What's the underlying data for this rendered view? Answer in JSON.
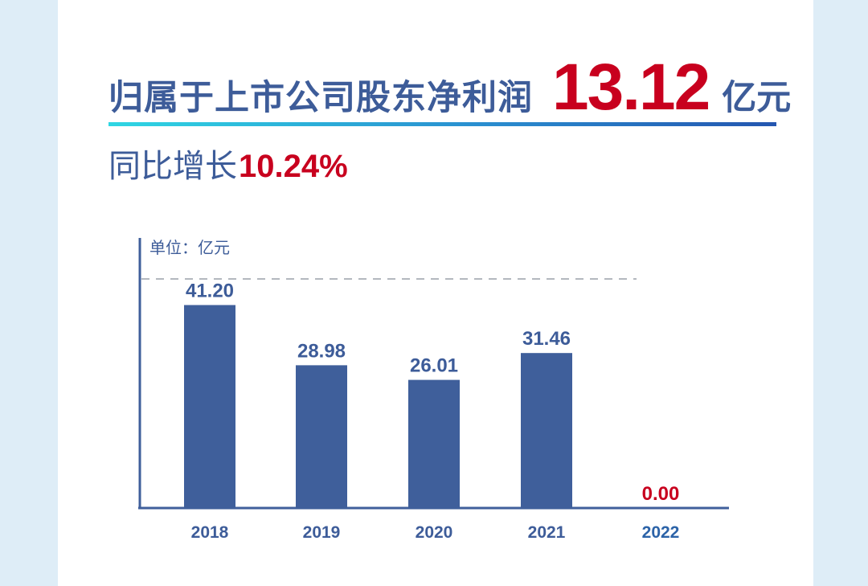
{
  "headline": {
    "label": "归属于上市公司股东净利润",
    "value": "13.12",
    "unit": "亿元"
  },
  "growth": {
    "label": "同比增长",
    "value": "10.24%"
  },
  "colors": {
    "bar": "#3f5f9b",
    "highlight": "#c8001e",
    "text": "#3d5c99",
    "axis": "#3f5f9b"
  },
  "chart_data": {
    "type": "bar",
    "unit_label": "单位：亿元",
    "categories": [
      "2018",
      "2019",
      "2020",
      "2021",
      "2022"
    ],
    "values": [
      41.2,
      28.98,
      26.01,
      31.46,
      0.0
    ],
    "value_labels": [
      "41.20",
      "28.98",
      "26.01",
      "31.46",
      "0.00"
    ],
    "highlight_index": 4,
    "ylim": [
      0,
      46.5
    ],
    "reference_line": 46.5,
    "grid": false
  }
}
